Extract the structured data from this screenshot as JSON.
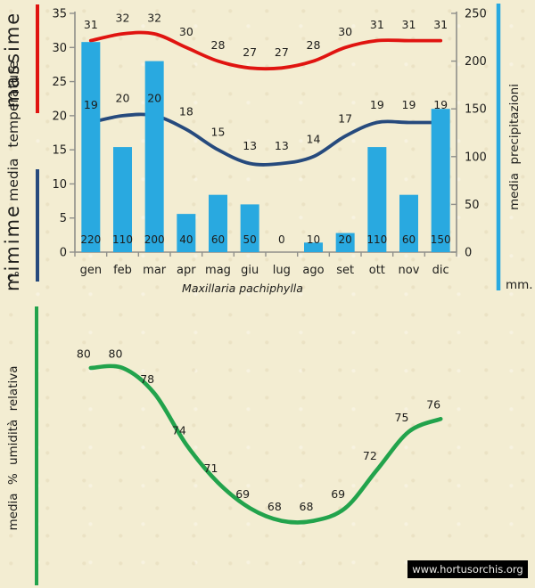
{
  "colors": {
    "background": "#f3edd2",
    "bar_blue": "#29a9e0",
    "max_red": "#e01410",
    "min_navy": "#264a7d",
    "humidity_green": "#22a34c",
    "axis_gray": "#8f8f8a",
    "text_dark": "#1d1d1b",
    "label_min_blue": "#2196d6",
    "badge_bg": "#000000",
    "badge_fg": "#ecebe7"
  },
  "labels": {
    "massime": "massime",
    "media_temperature": "media temperature",
    "mimime": "mimime",
    "celsius": "c°",
    "media_precipitazioni": "media precipitazioni",
    "mm": "mm.",
    "umidita": "media % umidità relativa"
  },
  "title": {
    "species": "Maxillaria pachiphylla"
  },
  "footer": {
    "url": "www.hortusorchis.org"
  },
  "chart_data": [
    {
      "type": "combo",
      "categories": [
        "gen",
        "feb",
        "mar",
        "apr",
        "mag",
        "giu",
        "lug",
        "ago",
        "set",
        "ott",
        "nov",
        "dic"
      ],
      "series": [
        {
          "name": "massime",
          "type": "line",
          "axis": "left",
          "color_key": "max_red",
          "values": [
            31,
            32,
            32,
            30,
            28,
            27,
            27,
            28,
            30,
            31,
            31,
            31
          ]
        },
        {
          "name": "mimime",
          "type": "line",
          "axis": "left",
          "color_key": "min_navy",
          "values": [
            19,
            20,
            20,
            18,
            15,
            13,
            13,
            14,
            17,
            19,
            19,
            19
          ]
        },
        {
          "name": "media precipitazioni",
          "type": "bar",
          "axis": "right",
          "color_key": "bar_blue",
          "values": [
            220,
            110,
            200,
            40,
            60,
            50,
            0,
            10,
            20,
            110,
            60,
            150
          ]
        }
      ],
      "left_axis": {
        "label": "media temperature",
        "unit": "c°",
        "range": [
          0,
          35
        ],
        "tick_step": 5
      },
      "right_axis": {
        "label": "media precipitazioni",
        "unit": "mm.",
        "range": [
          0,
          250
        ],
        "tick_step": 50
      },
      "point_labels": true,
      "grid": false,
      "legend_position": "vertical-side-bars"
    },
    {
      "type": "line",
      "title": "Maxillaria pachiphylla",
      "categories": [
        "gen",
        "feb",
        "mar",
        "apr",
        "mag",
        "giu",
        "lug",
        "ago",
        "set",
        "ott",
        "nov",
        "dic"
      ],
      "series": [
        {
          "name": "media % umidità relativa",
          "type": "line",
          "color_key": "humidity_green",
          "values": [
            80,
            80,
            78,
            74,
            71,
            69,
            68,
            68,
            69,
            72,
            75,
            76
          ]
        }
      ],
      "left_axis": {
        "label": "media % umidità relativa"
      },
      "point_labels": true,
      "grid": false
    }
  ]
}
